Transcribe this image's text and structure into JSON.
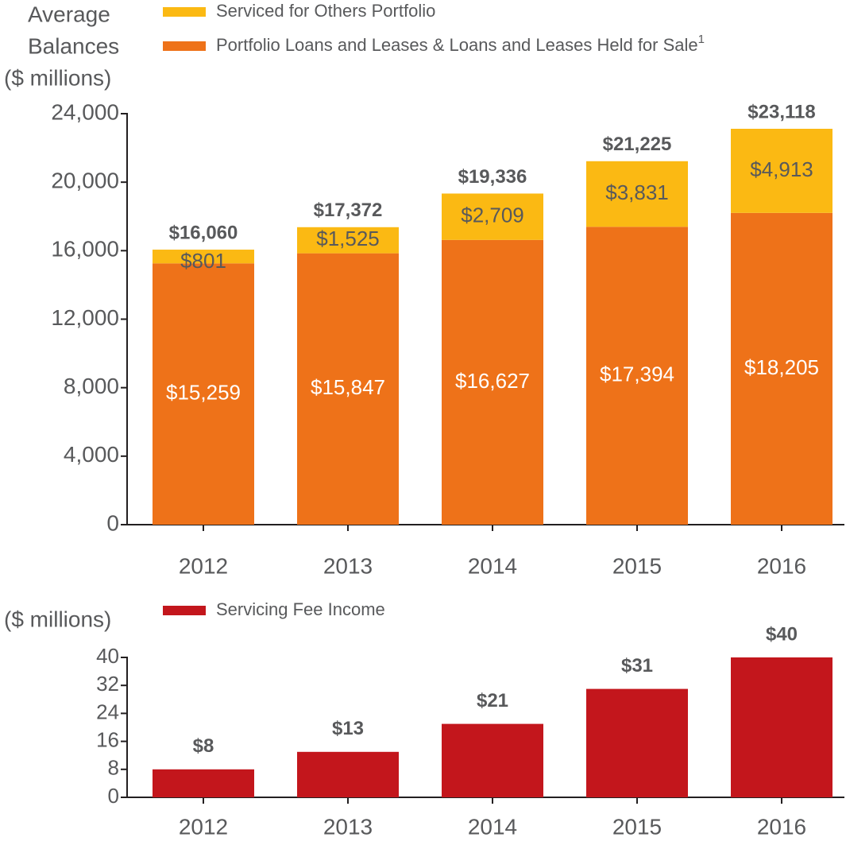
{
  "chart_data": [
    {
      "type": "stacked-bar",
      "y_label_lines": [
        "Average",
        "Balances",
        "($ millions)"
      ],
      "categories": [
        "2012",
        "2013",
        "2014",
        "2015",
        "2016"
      ],
      "series": [
        {
          "name": "Portfolio Loans and Leases & Loans and Leases Held for Sale",
          "note": "1",
          "color": "#ee7219",
          "values": [
            15259,
            15847,
            16627,
            17394,
            18205
          ],
          "value_labels": [
            "$15,259",
            "$15,847",
            "$16,627",
            "$17,394",
            "$18,205"
          ]
        },
        {
          "name": "Serviced for Others Portfolio",
          "color": "#fbb913",
          "values": [
            801,
            1525,
            2709,
            3831,
            4913
          ],
          "value_labels": [
            "$801",
            "$1,525",
            "$2,709",
            "$3,831",
            "$4,913"
          ]
        }
      ],
      "total_labels": [
        "$16,060",
        "$17,372",
        "$19,336",
        "$21,225",
        "$23,118"
      ],
      "ylim": [
        0,
        24000
      ],
      "yticks": [
        0,
        {
          "value": 4000,
          "label": "4,000"
        },
        {
          "value": 8000,
          "label": "8,000"
        },
        {
          "value": 12000,
          "label": "12,000"
        },
        {
          "value": 16000,
          "label": "16,000"
        },
        {
          "value": 20000,
          "label": "20,000"
        },
        {
          "value": 24000,
          "label": "24,000"
        }
      ]
    },
    {
      "type": "bar",
      "y_label": "($ millions)",
      "categories": [
        "2012",
        "2013",
        "2014",
        "2015",
        "2016"
      ],
      "series": [
        {
          "name": "Servicing Fee Income",
          "color": "#c3161c",
          "values": [
            8,
            13,
            21,
            31,
            40
          ],
          "value_labels": [
            "$8",
            "$13",
            "$21",
            "$31",
            "$40"
          ]
        }
      ],
      "ylim": [
        0,
        40
      ],
      "yticks": [
        0,
        8,
        16,
        24,
        32,
        40
      ]
    }
  ]
}
